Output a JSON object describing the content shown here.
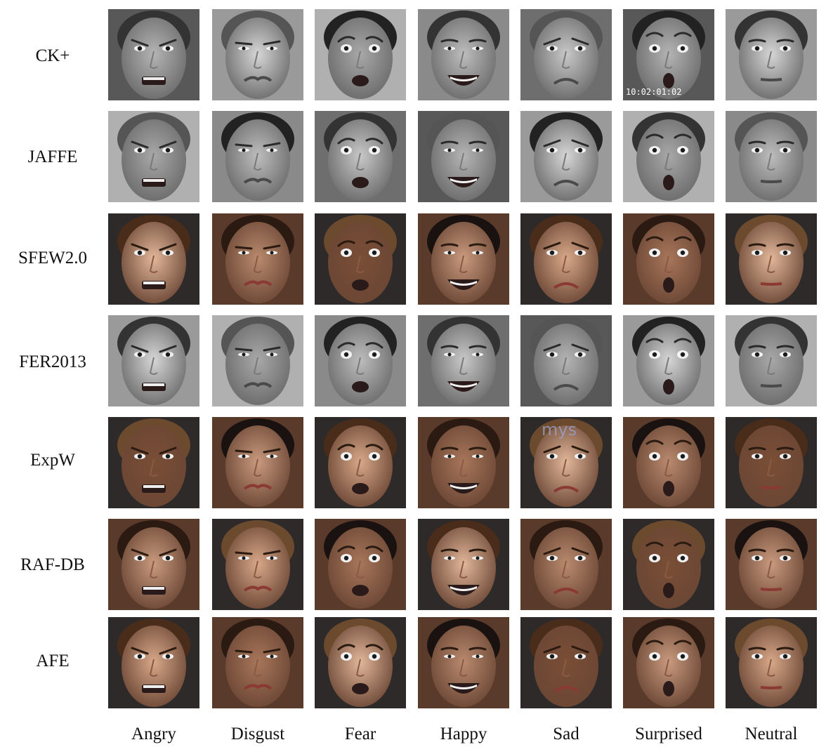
{
  "rows": [
    {
      "label": "CK+",
      "palette": "gray"
    },
    {
      "label": "JAFFE",
      "palette": "gray"
    },
    {
      "label": "SFEW2.0",
      "palette": "color"
    },
    {
      "label": "FER2013",
      "palette": "gray"
    },
    {
      "label": "ExpW",
      "palette": "color"
    },
    {
      "label": "RAF-DB",
      "palette": "color"
    },
    {
      "label": "AFE",
      "palette": "color"
    }
  ],
  "columns": [
    {
      "label": "Angry",
      "expression": "angry"
    },
    {
      "label": "Disgust",
      "expression": "disgust"
    },
    {
      "label": "Fear",
      "expression": "fear"
    },
    {
      "label": "Happy",
      "expression": "happy"
    },
    {
      "label": "Sad",
      "expression": "sad"
    },
    {
      "label": "Surprised",
      "expression": "surprised"
    },
    {
      "label": "Neutral",
      "expression": "neutral"
    }
  ],
  "overlay_text": {
    "ck_surprised_timestamp": "10:02:01:02",
    "expw_sad_watermark": "mys"
  },
  "colors": {
    "gray_skin": "#b8b8b8",
    "gray_bg": "#7a7a7a",
    "color_skin": "#c99a7e",
    "color_bg": "#5a3a2a"
  }
}
